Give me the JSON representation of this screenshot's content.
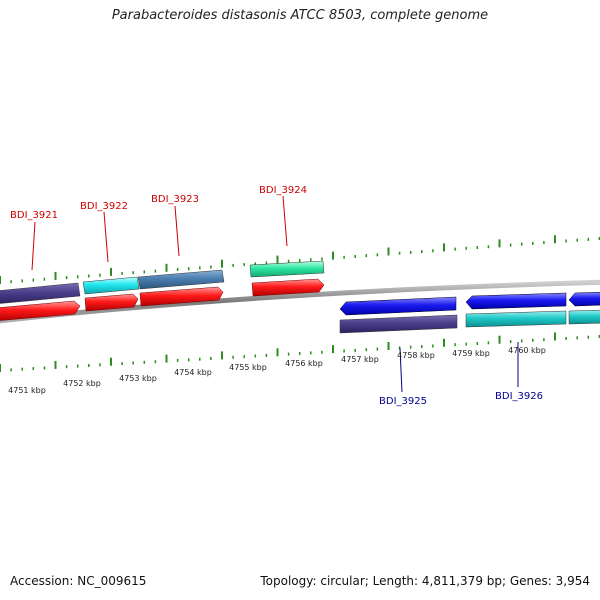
{
  "title": "Parabacteroides distasonis ATCC 8503, complete genome",
  "footer": {
    "accession": "Accession: NC_009615",
    "summary": "Topology: circular; Length: 4,811,379 bp; Genes: 3,954"
  },
  "colors": {
    "tick_green": "#2e8b1f",
    "label_red": "#cc0000",
    "label_blue": "#00008b",
    "backbone": "#888888"
  },
  "scale_labels": [
    "4751 kbp",
    "4752 kbp",
    "4753 kbp",
    "4754 kbp",
    "4755 kbp",
    "4756 kbp",
    "4757 kbp",
    "4758 kbp",
    "4759 kbp",
    "4760 kbp"
  ],
  "gene_labels": {
    "forward": [
      "BDI_3921",
      "BDI_3922",
      "BDI_3923",
      "BDI_3924"
    ],
    "reverse": [
      "BDI_3925",
      "BDI_3926"
    ]
  }
}
